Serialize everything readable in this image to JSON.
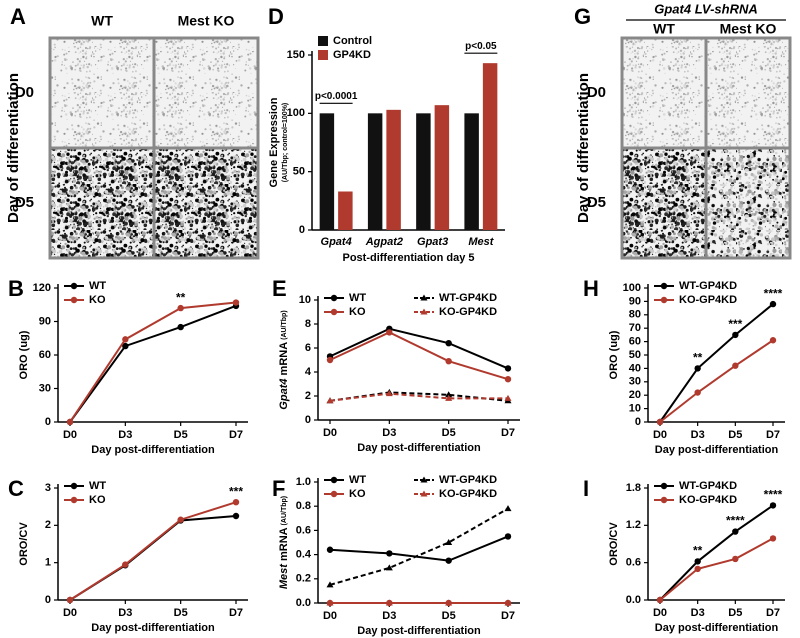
{
  "figure": {
    "images": [
      {
        "panel": "A",
        "header": null,
        "columns": [
          "WT",
          "Mest KO"
        ],
        "rows": [
          "D0",
          "D5"
        ],
        "ylabel": "Day of differentiation"
      },
      {
        "panel": "G",
        "header": "Gpat4 LV-shRNA",
        "columns": [
          "WT",
          "Mest KO"
        ],
        "rows": [
          "D0",
          "D5"
        ],
        "ylabel": "Day of differentiation"
      }
    ]
  },
  "chart_data": [
    {
      "panel": "B",
      "type": "line",
      "ylabel": "ORO (ug)",
      "xlabel": "Day post-differentiation",
      "categories": [
        "D0",
        "D3",
        "D5",
        "D7"
      ],
      "series": [
        {
          "name": "WT",
          "color": "#000000",
          "marker": "circle",
          "dashed": false,
          "values": [
            0,
            68,
            85,
            104
          ]
        },
        {
          "name": "KO",
          "color": "#b03a2e",
          "marker": "circle",
          "dashed": false,
          "values": [
            0,
            74,
            102,
            107
          ]
        }
      ],
      "ylim": [
        0,
        120
      ],
      "yticks": [
        0,
        30,
        60,
        90,
        120
      ],
      "significance": [
        null,
        null,
        "**",
        null
      ],
      "legend": "upper left"
    },
    {
      "panel": "C",
      "type": "line",
      "ylabel": "ORO/CV",
      "xlabel": "Day post-differentiation",
      "categories": [
        "D0",
        "D3",
        "D5",
        "D7"
      ],
      "series": [
        {
          "name": "WT",
          "color": "#000000",
          "marker": "circle",
          "dashed": false,
          "values": [
            0,
            0.93,
            2.13,
            2.25
          ]
        },
        {
          "name": "KO",
          "color": "#b03a2e",
          "marker": "circle",
          "dashed": false,
          "values": [
            0,
            0.95,
            2.15,
            2.62
          ]
        }
      ],
      "ylim": [
        0,
        3
      ],
      "yticks": [
        0,
        1,
        2,
        3
      ],
      "significance": [
        null,
        null,
        null,
        "***"
      ],
      "legend": "upper left"
    },
    {
      "panel": "D",
      "type": "bar",
      "ylabel": "Gene Expression",
      "ylabel_unit": "(AU/Tbp; control=100%)",
      "xlabel": "Post-differentiation day 5",
      "categories": [
        "Gpat4",
        "Agpat2",
        "Gpat3",
        "Mest"
      ],
      "series": [
        {
          "name": "Control",
          "color": "#111111",
          "values": [
            100,
            100,
            100,
            100
          ]
        },
        {
          "name": "GP4KD",
          "color": "#b03a2e",
          "values": [
            33,
            103,
            107,
            143
          ]
        }
      ],
      "ylim": [
        0,
        150
      ],
      "yticks": [
        0,
        50,
        100,
        150
      ],
      "significance": [
        "p<0.0001",
        null,
        null,
        "p<0.05"
      ],
      "legend": "upper left"
    },
    {
      "panel": "E",
      "type": "line",
      "ylabel": "Gpat4",
      "ylabel_rest": " mRNA",
      "ylabel_unit": " (AU/Tbp)",
      "xlabel": "Day post-differentiation",
      "categories": [
        "D0",
        "D3",
        "D5",
        "D7"
      ],
      "series": [
        {
          "name": "WT",
          "color": "#000000",
          "marker": "circle",
          "dashed": false,
          "values": [
            5.3,
            7.6,
            6.4,
            4.3
          ]
        },
        {
          "name": "KO",
          "color": "#b03a2e",
          "marker": "circle",
          "dashed": false,
          "values": [
            5.0,
            7.3,
            4.9,
            3.4
          ]
        },
        {
          "name": "WT-GP4KD",
          "color": "#000000",
          "marker": "triangle",
          "dashed": true,
          "values": [
            1.6,
            2.3,
            2.1,
            1.6
          ]
        },
        {
          "name": "KO-GP4KD",
          "color": "#b03a2e",
          "marker": "triangle",
          "dashed": true,
          "values": [
            1.6,
            2.2,
            1.8,
            1.8
          ]
        }
      ],
      "ylim": [
        0,
        10
      ],
      "yticks": [
        0,
        2,
        4,
        6,
        8,
        10
      ],
      "legend": "upper left"
    },
    {
      "panel": "F",
      "type": "line",
      "ylabel": "Mest",
      "ylabel_rest": " mRNA",
      "ylabel_unit": " (AU/Tbp)",
      "xlabel": "Day post-differentiation",
      "categories": [
        "D0",
        "D3",
        "D5",
        "D7"
      ],
      "series": [
        {
          "name": "WT",
          "color": "#000000",
          "marker": "circle",
          "dashed": false,
          "values": [
            0.44,
            0.41,
            0.35,
            0.55
          ]
        },
        {
          "name": "KO",
          "color": "#b03a2e",
          "marker": "circle",
          "dashed": false,
          "values": [
            0,
            0,
            0,
            0
          ]
        },
        {
          "name": "WT-GP4KD",
          "color": "#000000",
          "marker": "triangle",
          "dashed": true,
          "values": [
            0.15,
            0.29,
            0.5,
            0.78
          ]
        },
        {
          "name": "KO-GP4KD",
          "color": "#b03a2e",
          "marker": "triangle",
          "dashed": true,
          "values": [
            0,
            0,
            0,
            0
          ]
        }
      ],
      "ylim": [
        0,
        1
      ],
      "yticks": [
        {
          "value": 0,
          "label": "0.0"
        },
        0.2,
        0.4,
        0.6,
        0.8,
        {
          "value": 1,
          "label": "1.0"
        }
      ],
      "legend": "upper left"
    },
    {
      "panel": "H",
      "type": "line",
      "ylabel": "ORO (ug)",
      "xlabel": "Day post-differentiation",
      "categories": [
        "D0",
        "D3",
        "D5",
        "D7"
      ],
      "series": [
        {
          "name": "WT-GP4KD",
          "color": "#000000",
          "marker": "circle",
          "dashed": false,
          "values": [
            0,
            40,
            65,
            88
          ]
        },
        {
          "name": "KO-GP4KD",
          "color": "#b03a2e",
          "marker": "circle",
          "dashed": false,
          "values": [
            0,
            22,
            42,
            61
          ]
        }
      ],
      "ylim": [
        0,
        100
      ],
      "yticks": [
        0,
        10,
        20,
        30,
        40,
        50,
        60,
        70,
        80,
        90,
        100
      ],
      "significance": [
        null,
        "**",
        "***",
        "****"
      ],
      "legend": "upper left"
    },
    {
      "panel": "I",
      "type": "line",
      "ylabel": "ORO/CV",
      "xlabel": "Day post-differentiation",
      "categories": [
        "D0",
        "D3",
        "D5",
        "D7"
      ],
      "series": [
        {
          "name": "WT-GP4KD",
          "color": "#000000",
          "marker": "circle",
          "dashed": false,
          "values": [
            0,
            0.62,
            1.1,
            1.52
          ]
        },
        {
          "name": "KO-GP4KD",
          "color": "#b03a2e",
          "marker": "circle",
          "dashed": false,
          "values": [
            0,
            0.5,
            0.66,
            0.99
          ]
        }
      ],
      "ylim": [
        0,
        1.8
      ],
      "yticks": [
        {
          "value": 0,
          "label": "0.0"
        },
        0.6,
        1.2,
        1.8
      ],
      "significance": [
        null,
        "**",
        "****",
        "****"
      ],
      "legend": "upper left"
    }
  ]
}
